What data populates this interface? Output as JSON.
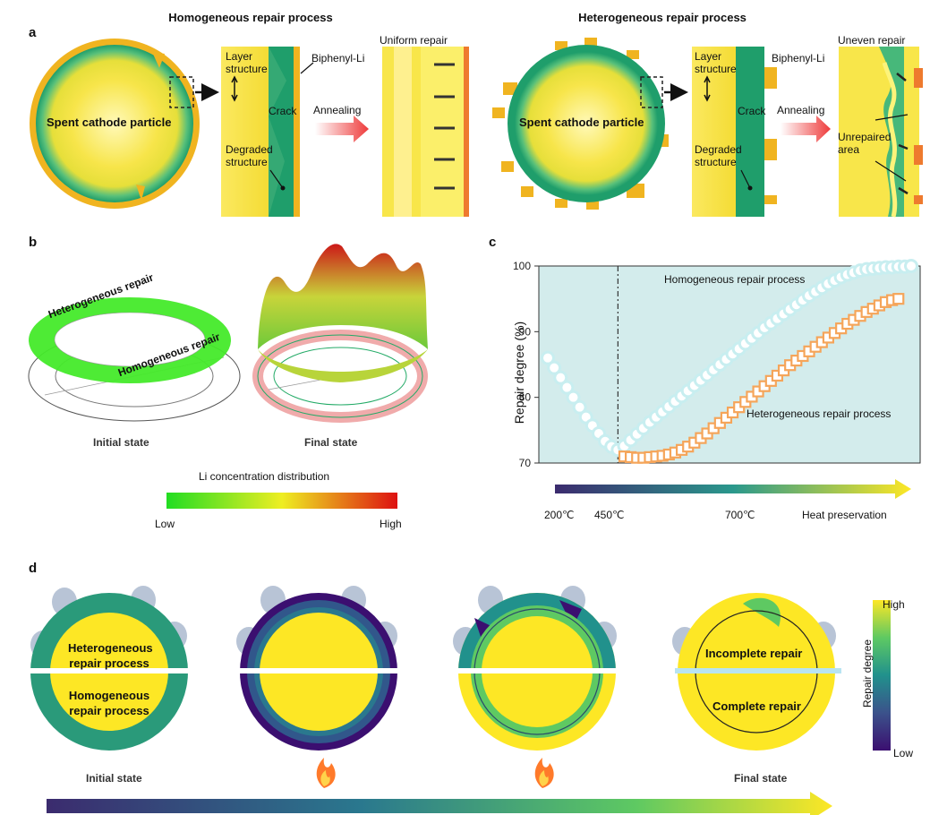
{
  "panels": {
    "a": "a",
    "b": "b",
    "c": "c",
    "d": "d"
  },
  "panel_a": {
    "left_title": "Homogeneous repair process",
    "right_title": "Heterogeneous repair process",
    "particle_label": "Spent cathode particle",
    "layer_structure": "Layer\nstructure",
    "crack": "Crack",
    "biphenyl": "Biphenyl-Li",
    "degraded": "Degraded\nstructure",
    "annealing": "Annealing",
    "uniform_repair": "Uniform repair",
    "uneven_repair": "Uneven repair",
    "unrepaired": "Unrepaired\narea"
  },
  "panel_b": {
    "heterogeneous_repair": "Heterogeneous repair",
    "homogeneous_repair": "Homogeneous repair",
    "initial_state": "Initial state",
    "final_state": "Final state",
    "colorbar_title": "Li concentration distribution",
    "low": "Low",
    "high": "High",
    "colors": {
      "low": "#22dd22",
      "mid": "#eeee22",
      "high": "#dd1111"
    }
  },
  "panel_c": {
    "ylabel": "Repair degree (%)",
    "homogeneous_label": "Homogeneous repair process",
    "heterogeneous_label": "Heterogeneous repair process",
    "temp_labels": [
      "200℃",
      "450℃",
      "700℃",
      "Heat preservation"
    ],
    "colors": {
      "background": "#d3ecec",
      "homogeneous": "#c8eef0",
      "heterogeneous": "#f5a55a"
    }
  },
  "chart_data": {
    "type": "scatter",
    "title": "",
    "xlabel": "",
    "ylabel": "Repair degree (%)",
    "ylim": [
      70,
      100
    ],
    "yticks": [
      70,
      80,
      90,
      100
    ],
    "vline_index": 11,
    "series": [
      {
        "name": "Homogeneous repair process",
        "marker": "circle",
        "values": [
          86,
          84.5,
          83,
          81.5,
          80,
          78.5,
          77,
          75.7,
          74.5,
          73.3,
          72.5,
          72,
          72.6,
          73.5,
          74.4,
          75.3,
          76.2,
          77,
          77.8,
          78.6,
          79.4,
          80.2,
          81,
          81.8,
          82.6,
          83.4,
          84.2,
          85,
          85.8,
          86.6,
          87.4,
          88.2,
          89,
          89.8,
          90.6,
          91.3,
          92,
          92.7,
          93.4,
          94.1,
          94.8,
          95.5,
          96.1,
          96.7,
          97.3,
          97.8,
          98.3,
          98.7,
          99,
          99.3,
          99.5,
          99.6,
          99.7,
          99.8,
          99.8,
          99.9,
          99.9,
          100
        ]
      },
      {
        "name": "Heterogeneous repair process",
        "marker": "square",
        "start_index": 12,
        "values": [
          71,
          70.9,
          70.8,
          70.8,
          70.9,
          71,
          71.1,
          71.3,
          71.6,
          72,
          72.5,
          73.1,
          73.8,
          74.5,
          75.3,
          76.1,
          76.9,
          77.7,
          78.5,
          79.3,
          80.1,
          80.9,
          81.7,
          82.5,
          83.3,
          84.1,
          84.9,
          85.6,
          86.3,
          87,
          87.7,
          88.4,
          89.1,
          89.8,
          90.5,
          91.2,
          91.8,
          92.4,
          93,
          93.5,
          94,
          94.5,
          94.8,
          95
        ]
      }
    ]
  },
  "panel_d": {
    "heterogeneous": "Heterogeneous\nrepair process",
    "homogeneous": "Homogeneous\nrepair process",
    "initial_state": "Initial state",
    "final_state": "Final state",
    "incomplete": "Incomplete repair",
    "complete": "Complete repair",
    "colorbar_title": "Repair degree",
    "high": "High",
    "low": "Low",
    "colors": {
      "low": "#3b0f70",
      "mid": "#21918c",
      "high": "#fde725"
    }
  }
}
